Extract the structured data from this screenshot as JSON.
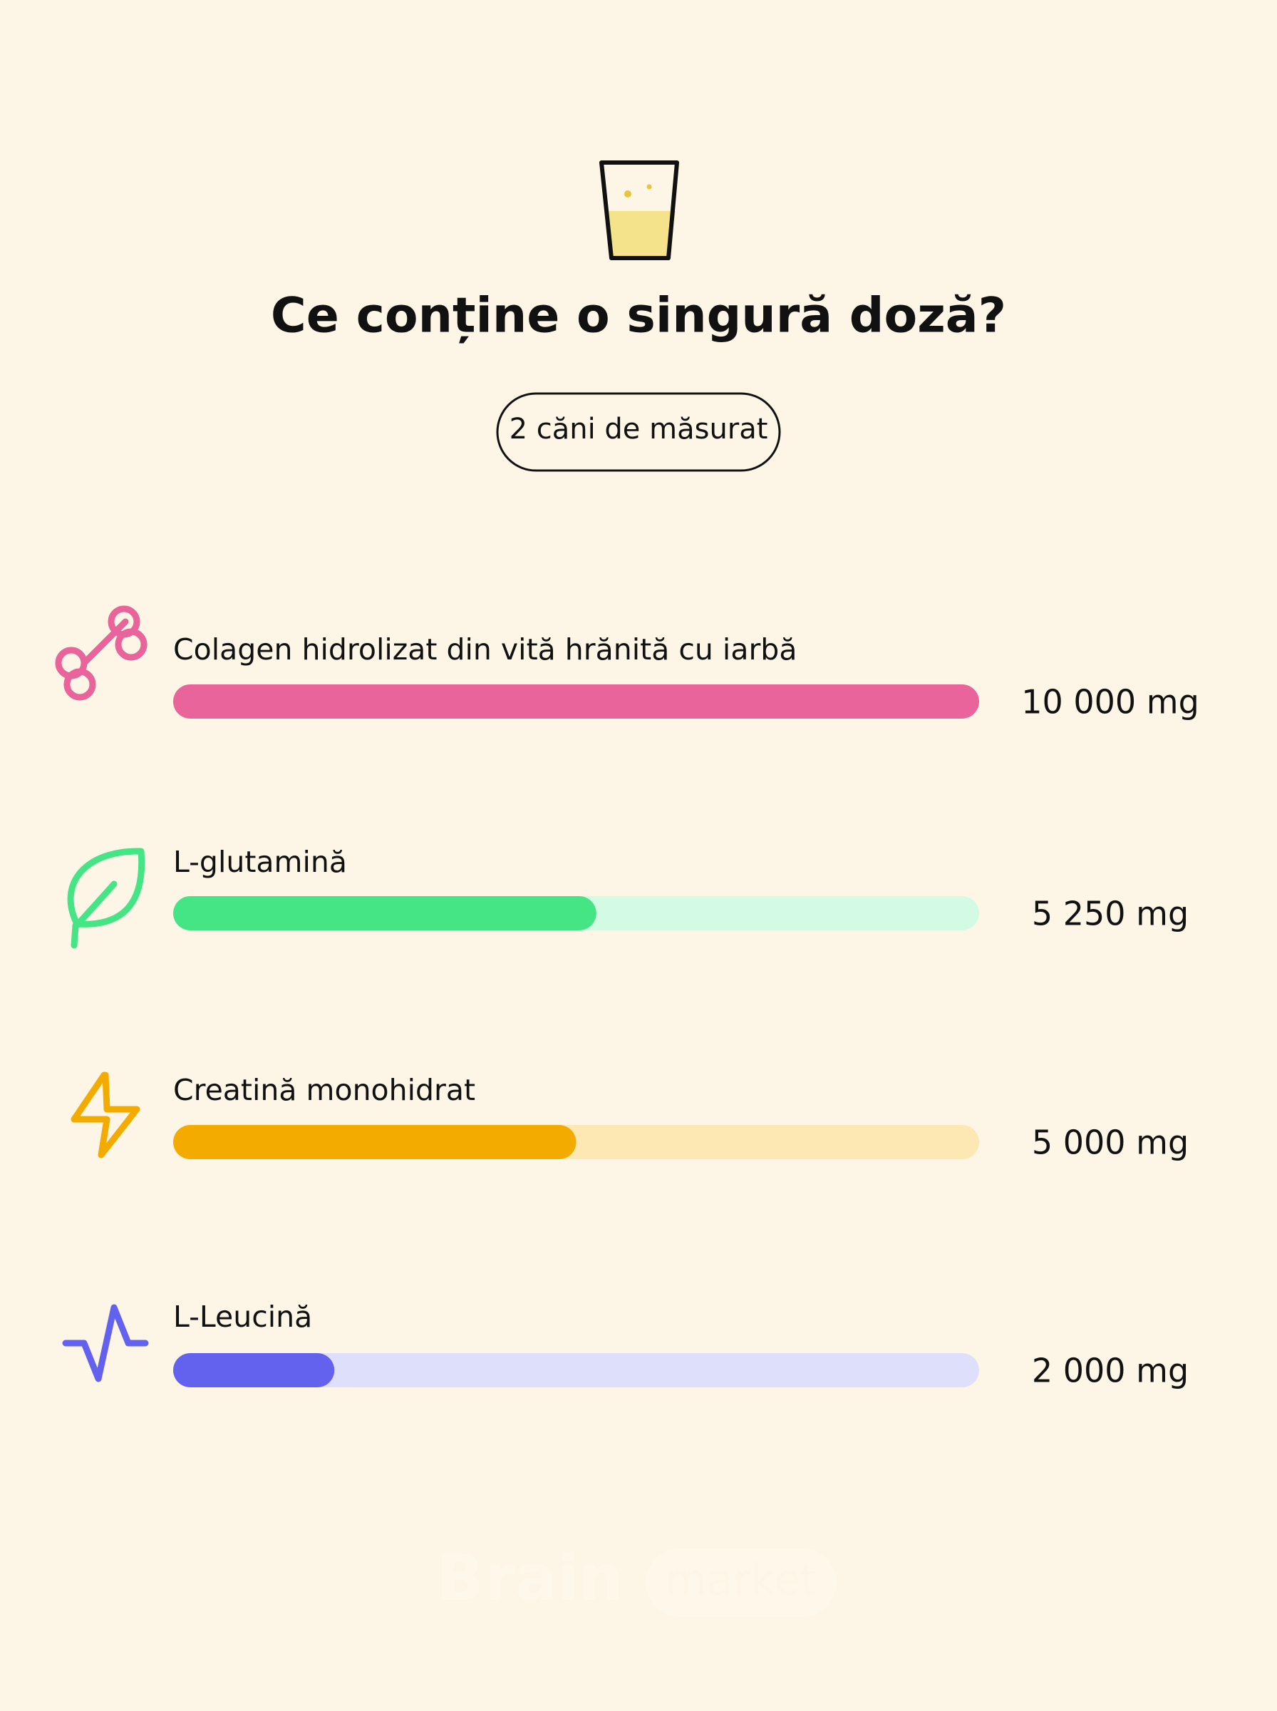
{
  "chart_data": {
    "type": "hbar",
    "title": "Ce conține o singură doză?",
    "subtitle": "2 căni de măsurat",
    "categories": [
      "Colagen hidrolizat din vită hrănită cu iarbă",
      "L-glutamină",
      "Creatină monohidrat",
      "L-Leucină"
    ],
    "values": [
      10000,
      5250,
      5000,
      2000
    ],
    "value_labels": [
      "10 000 mg",
      "5 250 mg",
      "5 000 mg",
      "2 000 mg"
    ],
    "colors": [
      "#e8649a",
      "#45e586",
      "#f4ab00",
      "#6262ef"
    ],
    "track_colors": [
      "#f9d4e2",
      "#d3fbe3",
      "#fde7b3",
      "#dedffb"
    ],
    "xlim": [
      0,
      10000
    ]
  },
  "watermark": [
    "Brain",
    "market"
  ]
}
